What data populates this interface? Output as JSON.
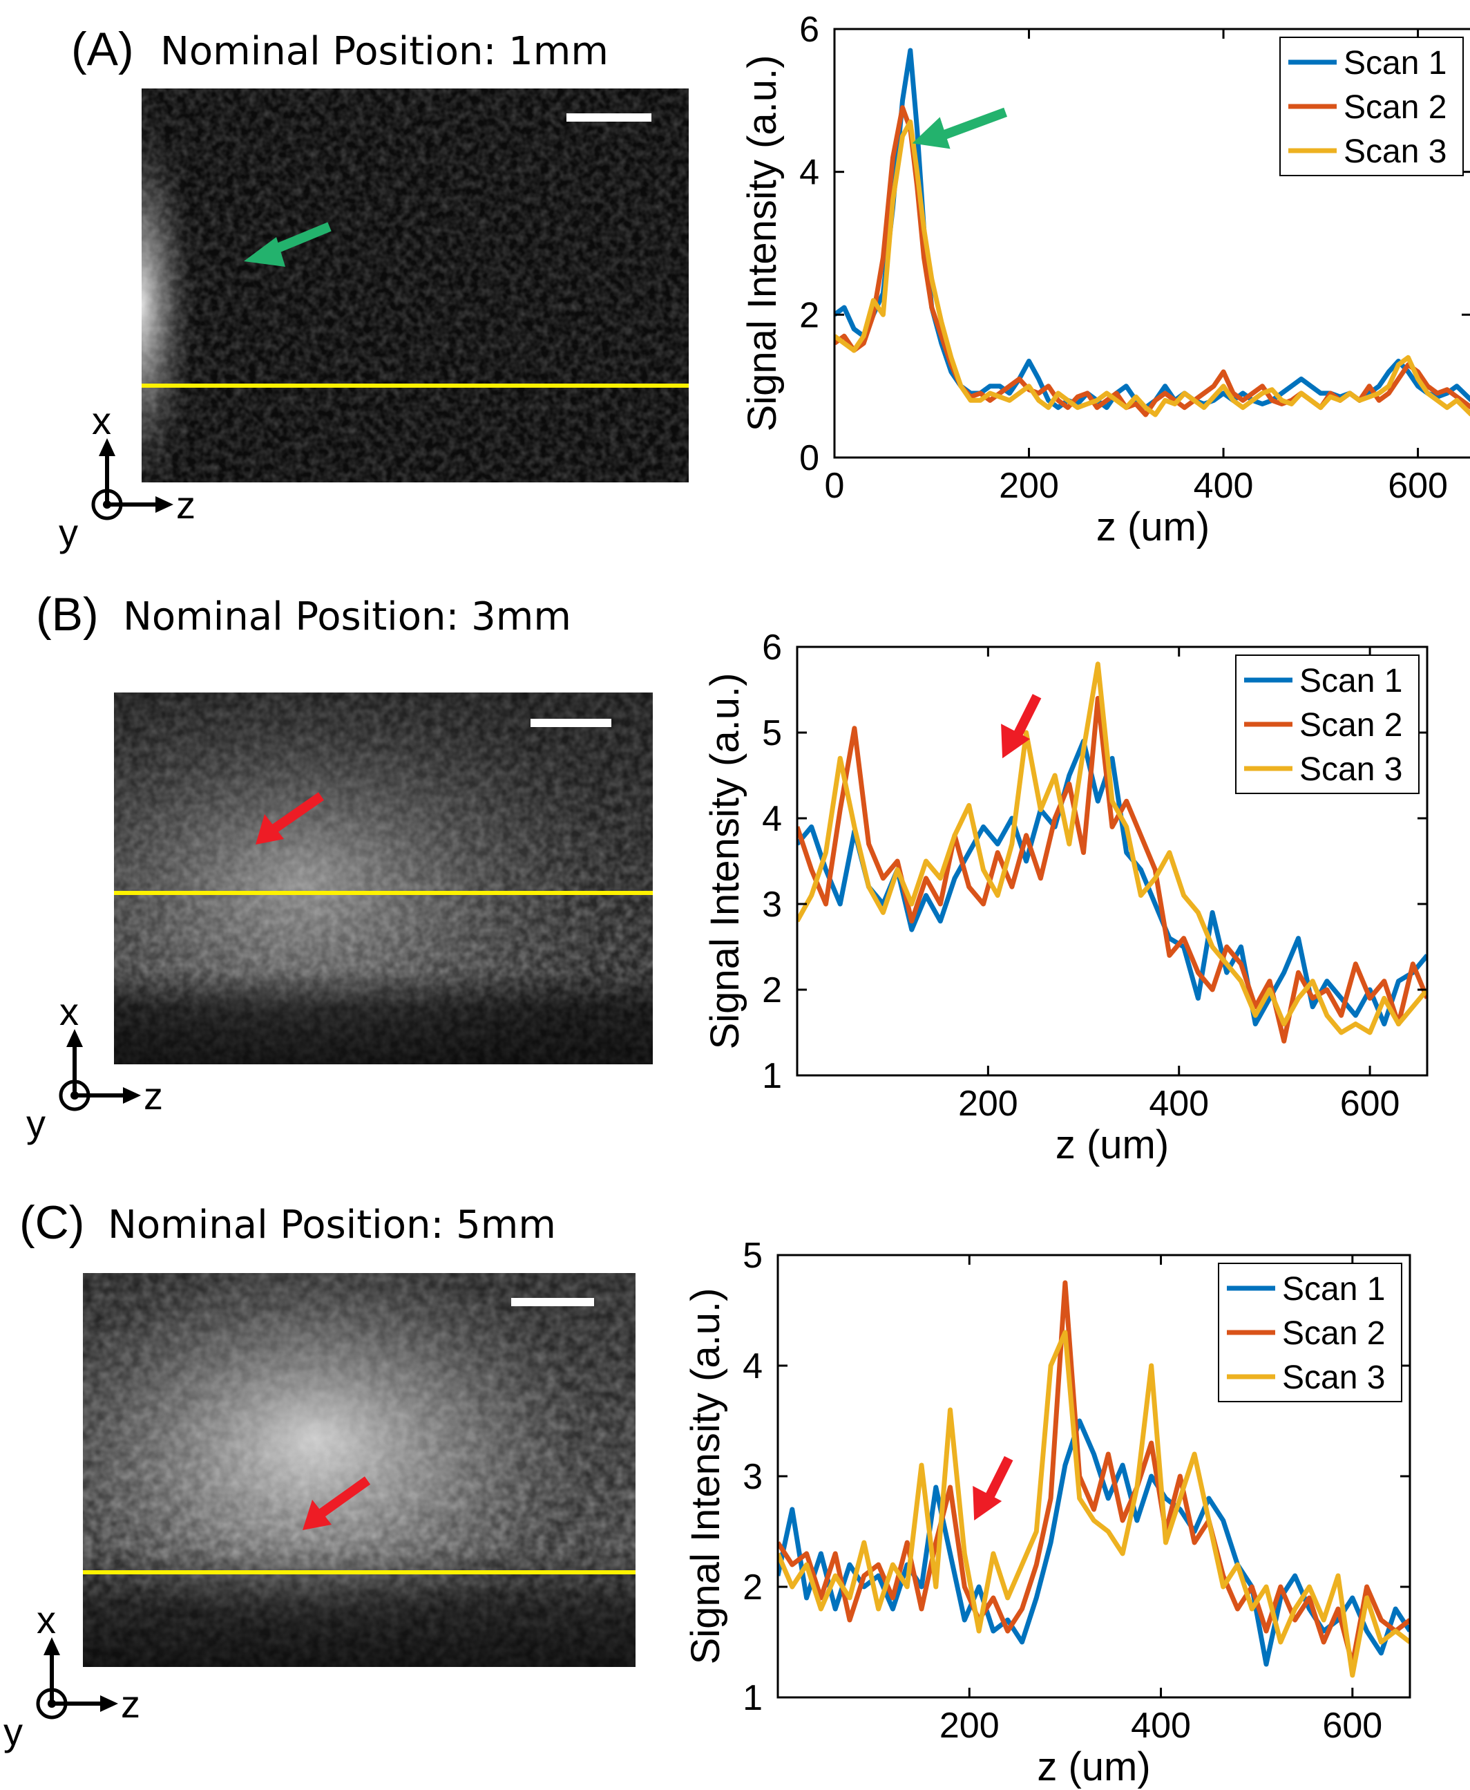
{
  "colors": {
    "scan1": "#0072BD",
    "scan2": "#D95319",
    "scan3": "#EDB120",
    "profile_line": "#FFF200",
    "arrow_green": "#23B26D",
    "arrow_red": "#EE1C25"
  },
  "panels": [
    {
      "label": "(A)",
      "title": "Nominal Position: 1mm",
      "image": {
        "brightness": "dim-left-edge",
        "arrow_color": "green"
      },
      "axes": {
        "vertical": "x",
        "horizontal": "z",
        "out_of_plane": "y"
      }
    },
    {
      "label": "(B)",
      "title": "Nominal Position: 3mm",
      "image": {
        "brightness": "medium",
        "arrow_color": "red"
      },
      "axes": {
        "vertical": "x",
        "horizontal": "z",
        "out_of_plane": "y"
      }
    },
    {
      "label": "(C)",
      "title": "Nominal Position: 5mm",
      "image": {
        "brightness": "bright-center",
        "arrow_color": "red"
      },
      "axes": {
        "vertical": "x",
        "horizontal": "z",
        "out_of_plane": "y"
      }
    }
  ],
  "chart_data": [
    {
      "type": "line",
      "xlabel": "z (um)",
      "ylabel": "Signal Intensity (a.u.)",
      "xlim": [
        0,
        655
      ],
      "ylim": [
        0,
        6
      ],
      "xticks": [
        0,
        200,
        400,
        600
      ],
      "yticks": [
        0,
        2,
        4,
        6
      ],
      "legend": "top-right",
      "arrow": {
        "color": "green",
        "points_to": [
          80,
          4.4
        ]
      },
      "series": [
        {
          "name": "Scan 1",
          "x": [
            0,
            10,
            20,
            30,
            40,
            50,
            60,
            70,
            78,
            85,
            92,
            100,
            110,
            120,
            130,
            140,
            150,
            160,
            170,
            180,
            190,
            200,
            210,
            220,
            230,
            240,
            250,
            260,
            270,
            280,
            290,
            300,
            310,
            320,
            330,
            340,
            350,
            360,
            370,
            380,
            390,
            400,
            410,
            420,
            430,
            440,
            450,
            460,
            470,
            480,
            490,
            500,
            510,
            520,
            530,
            540,
            550,
            560,
            570,
            580,
            590,
            600,
            610,
            620,
            630,
            640,
            655
          ],
          "y": [
            2.0,
            2.1,
            1.8,
            1.7,
            2.0,
            2.3,
            3.5,
            5.0,
            5.7,
            4.6,
            3.2,
            2.1,
            1.6,
            1.2,
            1.0,
            0.9,
            0.9,
            1.0,
            1.0,
            0.9,
            1.1,
            1.35,
            1.1,
            0.8,
            0.7,
            0.8,
            0.75,
            0.9,
            0.8,
            0.7,
            0.9,
            1.0,
            0.8,
            0.7,
            0.8,
            1.0,
            0.8,
            0.9,
            0.8,
            0.75,
            0.8,
            0.9,
            0.8,
            0.9,
            0.8,
            0.75,
            0.8,
            0.9,
            1.0,
            1.1,
            1.0,
            0.9,
            0.9,
            0.85,
            0.9,
            0.8,
            0.9,
            1.0,
            1.2,
            1.35,
            1.2,
            1.0,
            0.9,
            0.85,
            0.9,
            1.0,
            0.8
          ]
        },
        {
          "name": "Scan 2",
          "x": [
            0,
            10,
            20,
            30,
            40,
            50,
            60,
            70,
            78,
            85,
            92,
            100,
            110,
            120,
            130,
            140,
            150,
            160,
            170,
            180,
            190,
            200,
            210,
            220,
            230,
            240,
            250,
            260,
            270,
            280,
            290,
            300,
            310,
            320,
            330,
            340,
            350,
            360,
            370,
            380,
            390,
            400,
            410,
            420,
            430,
            440,
            450,
            460,
            470,
            480,
            490,
            500,
            510,
            520,
            530,
            540,
            550,
            560,
            570,
            580,
            590,
            600,
            610,
            620,
            630,
            640,
            655
          ],
          "y": [
            1.6,
            1.7,
            1.5,
            1.6,
            2.0,
            2.8,
            4.2,
            4.9,
            4.6,
            3.8,
            2.8,
            2.1,
            1.7,
            1.3,
            1.0,
            0.85,
            0.9,
            0.8,
            0.9,
            1.0,
            1.1,
            0.95,
            0.9,
            1.0,
            0.8,
            0.7,
            0.85,
            0.9,
            0.7,
            0.8,
            0.9,
            0.7,
            0.75,
            0.6,
            0.8,
            0.9,
            0.8,
            0.7,
            0.8,
            0.9,
            1.0,
            1.2,
            0.9,
            0.8,
            0.9,
            1.0,
            0.8,
            0.75,
            0.8,
            0.9,
            0.8,
            0.7,
            0.9,
            0.8,
            0.9,
            0.8,
            1.0,
            0.8,
            0.9,
            1.1,
            1.3,
            1.2,
            1.0,
            0.9,
            0.95,
            0.85,
            0.7
          ]
        },
        {
          "name": "Scan 3",
          "x": [
            0,
            10,
            20,
            30,
            40,
            50,
            60,
            70,
            78,
            85,
            92,
            100,
            110,
            120,
            130,
            140,
            150,
            160,
            170,
            180,
            190,
            200,
            210,
            220,
            230,
            240,
            250,
            260,
            270,
            280,
            290,
            300,
            310,
            320,
            330,
            340,
            350,
            360,
            370,
            380,
            390,
            400,
            410,
            420,
            430,
            440,
            450,
            460,
            470,
            480,
            490,
            500,
            510,
            520,
            530,
            540,
            550,
            560,
            570,
            580,
            590,
            600,
            610,
            620,
            630,
            640,
            655
          ],
          "y": [
            1.7,
            1.6,
            1.5,
            1.7,
            2.2,
            2.0,
            3.6,
            4.5,
            4.7,
            4.0,
            3.2,
            2.5,
            1.9,
            1.4,
            1.0,
            0.8,
            0.8,
            0.9,
            0.85,
            0.8,
            0.9,
            1.0,
            0.8,
            0.7,
            0.9,
            0.8,
            0.7,
            0.75,
            0.8,
            0.9,
            0.8,
            0.7,
            0.85,
            0.7,
            0.6,
            0.8,
            0.75,
            0.9,
            0.8,
            0.7,
            0.85,
            1.0,
            0.8,
            0.7,
            0.8,
            0.9,
            0.95,
            0.8,
            0.75,
            0.9,
            0.8,
            0.7,
            0.85,
            0.8,
            0.9,
            0.8,
            0.85,
            0.9,
            1.0,
            1.3,
            1.4,
            1.1,
            0.9,
            0.8,
            0.7,
            0.8,
            0.6
          ]
        }
      ]
    },
    {
      "type": "line",
      "xlabel": "z (um)",
      "ylabel": "Signal Intensity (a.u.)",
      "xlim": [
        0,
        660
      ],
      "ylim": [
        1,
        6
      ],
      "xticks": [
        200,
        400,
        600
      ],
      "yticks": [
        1,
        2,
        3,
        4,
        5,
        6
      ],
      "legend": "top-right",
      "arrow": {
        "color": "red",
        "points_to": [
          215,
          4.7
        ]
      },
      "series": [
        {
          "name": "Scan 1",
          "x": [
            0,
            15,
            30,
            45,
            60,
            75,
            90,
            105,
            120,
            135,
            150,
            165,
            180,
            195,
            210,
            225,
            240,
            255,
            270,
            285,
            300,
            315,
            330,
            345,
            360,
            375,
            390,
            405,
            420,
            435,
            450,
            465,
            480,
            495,
            510,
            525,
            540,
            555,
            570,
            585,
            600,
            615,
            630,
            645,
            660
          ],
          "y": [
            3.7,
            3.9,
            3.4,
            3.0,
            3.85,
            3.2,
            3.0,
            3.4,
            2.7,
            3.1,
            2.8,
            3.3,
            3.6,
            3.9,
            3.7,
            4.0,
            3.5,
            4.1,
            3.9,
            4.5,
            4.9,
            4.2,
            4.7,
            3.6,
            3.4,
            3.0,
            2.6,
            2.5,
            1.9,
            2.9,
            2.2,
            2.5,
            1.6,
            1.9,
            2.2,
            2.6,
            1.8,
            2.1,
            1.9,
            1.7,
            2.0,
            1.6,
            2.1,
            2.2,
            2.4
          ]
        },
        {
          "name": "Scan 2",
          "x": [
            0,
            15,
            30,
            45,
            60,
            75,
            90,
            105,
            120,
            135,
            150,
            165,
            180,
            195,
            210,
            225,
            240,
            255,
            270,
            285,
            300,
            315,
            330,
            345,
            360,
            375,
            390,
            405,
            420,
            435,
            450,
            465,
            480,
            495,
            510,
            525,
            540,
            555,
            570,
            585,
            600,
            615,
            630,
            645,
            660
          ],
          "y": [
            3.9,
            3.4,
            3.0,
            4.1,
            5.05,
            3.7,
            3.3,
            3.5,
            2.8,
            3.3,
            3.0,
            3.8,
            3.2,
            3.0,
            3.6,
            3.2,
            3.8,
            3.3,
            4.0,
            4.4,
            3.6,
            5.4,
            3.9,
            4.2,
            3.8,
            3.4,
            2.4,
            2.6,
            2.2,
            2.0,
            2.5,
            2.3,
            1.8,
            2.1,
            1.4,
            2.2,
            1.9,
            2.0,
            1.7,
            2.3,
            1.9,
            2.1,
            1.6,
            2.3,
            1.9
          ]
        },
        {
          "name": "Scan 3",
          "x": [
            0,
            15,
            30,
            45,
            60,
            75,
            90,
            105,
            120,
            135,
            150,
            165,
            180,
            195,
            210,
            225,
            240,
            255,
            270,
            285,
            300,
            315,
            330,
            345,
            360,
            375,
            390,
            405,
            420,
            435,
            450,
            465,
            480,
            495,
            510,
            525,
            540,
            555,
            570,
            585,
            600,
            615,
            630,
            645,
            660
          ],
          "y": [
            2.8,
            3.1,
            3.6,
            4.7,
            3.9,
            3.2,
            2.9,
            3.4,
            3.0,
            3.5,
            3.3,
            3.8,
            4.15,
            3.4,
            3.1,
            3.7,
            5.0,
            4.1,
            4.5,
            3.7,
            4.8,
            5.8,
            4.2,
            3.9,
            3.1,
            3.3,
            3.6,
            3.1,
            2.9,
            2.5,
            2.3,
            2.1,
            1.7,
            2.0,
            1.6,
            1.9,
            2.1,
            1.7,
            1.5,
            1.6,
            1.5,
            1.9,
            1.6,
            1.8,
            2.0
          ]
        }
      ]
    },
    {
      "type": "line",
      "xlabel": "z (um)",
      "ylabel": "Signal Intensity (a.u.)",
      "xlim": [
        0,
        660
      ],
      "ylim": [
        1,
        5
      ],
      "xticks": [
        200,
        400,
        600
      ],
      "yticks": [
        1,
        2,
        3,
        4,
        5
      ],
      "legend": "top-right",
      "arrow": {
        "color": "red",
        "points_to": [
          205,
          2.6
        ]
      },
      "series": [
        {
          "name": "Scan 1",
          "x": [
            0,
            15,
            30,
            45,
            60,
            75,
            90,
            105,
            120,
            135,
            150,
            165,
            180,
            195,
            210,
            225,
            240,
            255,
            270,
            285,
            300,
            315,
            330,
            345,
            360,
            375,
            390,
            405,
            420,
            435,
            450,
            465,
            480,
            495,
            510,
            525,
            540,
            555,
            570,
            585,
            600,
            615,
            630,
            645,
            660
          ],
          "y": [
            2.1,
            2.7,
            1.9,
            2.3,
            1.8,
            2.2,
            2.0,
            2.1,
            1.8,
            2.2,
            2.0,
            2.9,
            2.3,
            1.7,
            2.0,
            1.6,
            1.7,
            1.5,
            1.9,
            2.4,
            3.1,
            3.5,
            3.2,
            2.8,
            3.1,
            2.6,
            3.0,
            2.8,
            2.7,
            2.5,
            2.8,
            2.6,
            2.2,
            2.0,
            1.3,
            1.9,
            2.1,
            1.8,
            1.6,
            1.7,
            1.9,
            1.6,
            1.4,
            1.8,
            1.6
          ]
        },
        {
          "name": "Scan 2",
          "x": [
            0,
            15,
            30,
            45,
            60,
            75,
            90,
            105,
            120,
            135,
            150,
            165,
            180,
            195,
            210,
            225,
            240,
            255,
            270,
            285,
            300,
            315,
            330,
            345,
            360,
            375,
            390,
            405,
            420,
            435,
            450,
            465,
            480,
            495,
            510,
            525,
            540,
            555,
            570,
            585,
            600,
            615,
            630,
            645,
            660
          ],
          "y": [
            2.4,
            2.2,
            2.3,
            1.9,
            2.3,
            1.7,
            2.1,
            2.2,
            1.9,
            2.4,
            1.8,
            2.4,
            2.9,
            2.0,
            1.7,
            1.9,
            1.6,
            1.8,
            2.2,
            2.8,
            4.75,
            3.0,
            2.7,
            3.2,
            2.6,
            2.9,
            3.3,
            2.5,
            3.0,
            2.4,
            2.6,
            2.1,
            1.8,
            2.0,
            1.6,
            2.0,
            1.7,
            1.9,
            1.5,
            1.8,
            1.3,
            2.0,
            1.7,
            1.6,
            1.7
          ]
        },
        {
          "name": "Scan 3",
          "x": [
            0,
            15,
            30,
            45,
            60,
            75,
            90,
            105,
            120,
            135,
            150,
            165,
            180,
            195,
            210,
            225,
            240,
            255,
            270,
            285,
            300,
            315,
            330,
            345,
            360,
            375,
            390,
            405,
            420,
            435,
            450,
            465,
            480,
            495,
            510,
            525,
            540,
            555,
            570,
            585,
            600,
            615,
            630,
            645,
            660
          ],
          "y": [
            2.3,
            2.0,
            2.2,
            1.8,
            2.1,
            1.9,
            2.4,
            1.8,
            2.2,
            2.0,
            3.1,
            2.0,
            3.6,
            2.3,
            1.6,
            2.3,
            1.9,
            2.2,
            2.5,
            4.0,
            4.3,
            2.8,
            2.6,
            2.5,
            2.3,
            2.9,
            4.0,
            2.4,
            2.8,
            3.2,
            2.6,
            2.0,
            2.2,
            1.8,
            2.0,
            1.5,
            1.8,
            2.0,
            1.7,
            2.1,
            1.2,
            1.9,
            1.5,
            1.6,
            1.5
          ]
        }
      ]
    }
  ]
}
